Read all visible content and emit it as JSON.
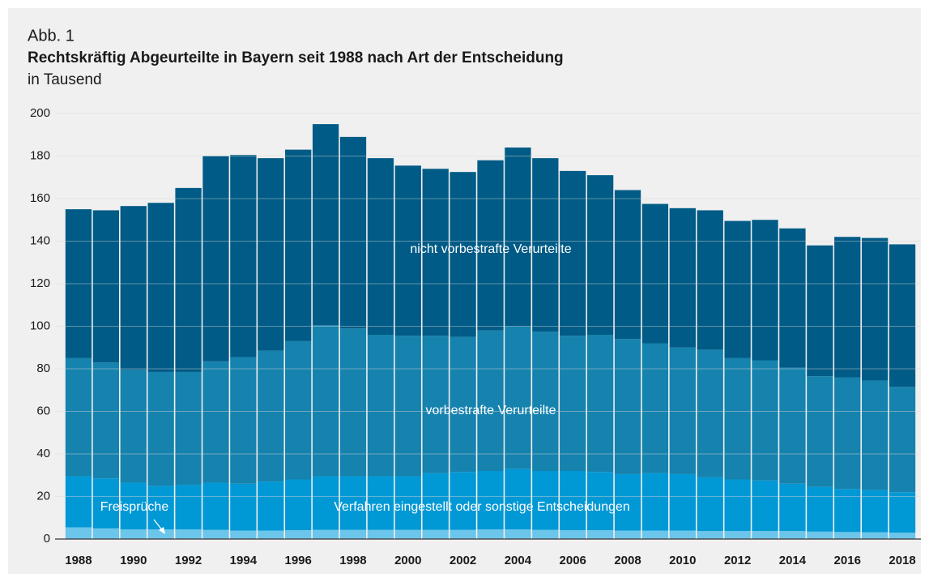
{
  "chart_data": {
    "type": "stacked_bar",
    "kicker": "Abb. 1",
    "title": "Rechtskräftig Abgeurteilte in Bayern seit 1988 nach Art der Entscheidung",
    "subtitle": "in Tausend",
    "categories": [
      "1988",
      null,
      "1990",
      null,
      "1992",
      null,
      "1994",
      null,
      "1996",
      null,
      "1998",
      null,
      "2000",
      null,
      "2002",
      null,
      "2004",
      null,
      "2006",
      null,
      "2008",
      null,
      "2010",
      null,
      "2012",
      null,
      "2014",
      null,
      "2016",
      null,
      "2018"
    ],
    "series": [
      {
        "name": "Freisprüche",
        "color": "#6cc5ea",
        "values": [
          5.5,
          5,
          4.5,
          4.5,
          4.5,
          4.3,
          4,
          4,
          4.2,
          4.3,
          4.3,
          4.3,
          4.3,
          4.3,
          4.3,
          4.5,
          4.5,
          4.3,
          4.2,
          4.2,
          4,
          4,
          4,
          3.8,
          3.8,
          3.8,
          3.8,
          3.5,
          3.3,
          3.2,
          3
        ]
      },
      {
        "name": "Verfahren eingestellt oder sonstige Entscheidungen",
        "color": "#0098d5",
        "values": [
          24,
          23.5,
          22,
          20.5,
          21,
          22.2,
          22,
          23,
          23.8,
          25.2,
          25.2,
          25.2,
          25.2,
          26.7,
          27.2,
          27.5,
          28.5,
          27.7,
          27.8,
          27.3,
          26.5,
          27,
          26.5,
          25.2,
          24.2,
          23.7,
          22.2,
          21,
          20.2,
          19.8,
          19
        ]
      },
      {
        "name": "vorbestrafte Verurteilte",
        "color": "#1682ae",
        "values": [
          55.5,
          54.5,
          53,
          53.5,
          53,
          57,
          59.5,
          61.5,
          65,
          71,
          69.5,
          66.5,
          66,
          64.5,
          63.5,
          66,
          67,
          65.5,
          63.5,
          64.5,
          63.5,
          61,
          59.5,
          60,
          57,
          56.5,
          54.5,
          52,
          52.5,
          51.5,
          49.5
        ]
      },
      {
        "name": "nicht vorbestrafte Verurteilte",
        "color": "#005b86",
        "values": [
          70,
          71.5,
          77,
          79.5,
          86.5,
          96.5,
          95,
          90.5,
          90,
          94.5,
          90,
          83,
          80,
          78.5,
          77.5,
          80,
          84,
          81.5,
          77.5,
          75,
          70,
          65.5,
          65.5,
          65.5,
          64.5,
          66,
          65.5,
          61.5,
          66,
          67,
          67
        ]
      }
    ],
    "ylim": [
      0,
      200
    ],
    "yticks": [
      0,
      20,
      40,
      60,
      80,
      100,
      120,
      140,
      160,
      180,
      200
    ],
    "grid": true
  }
}
